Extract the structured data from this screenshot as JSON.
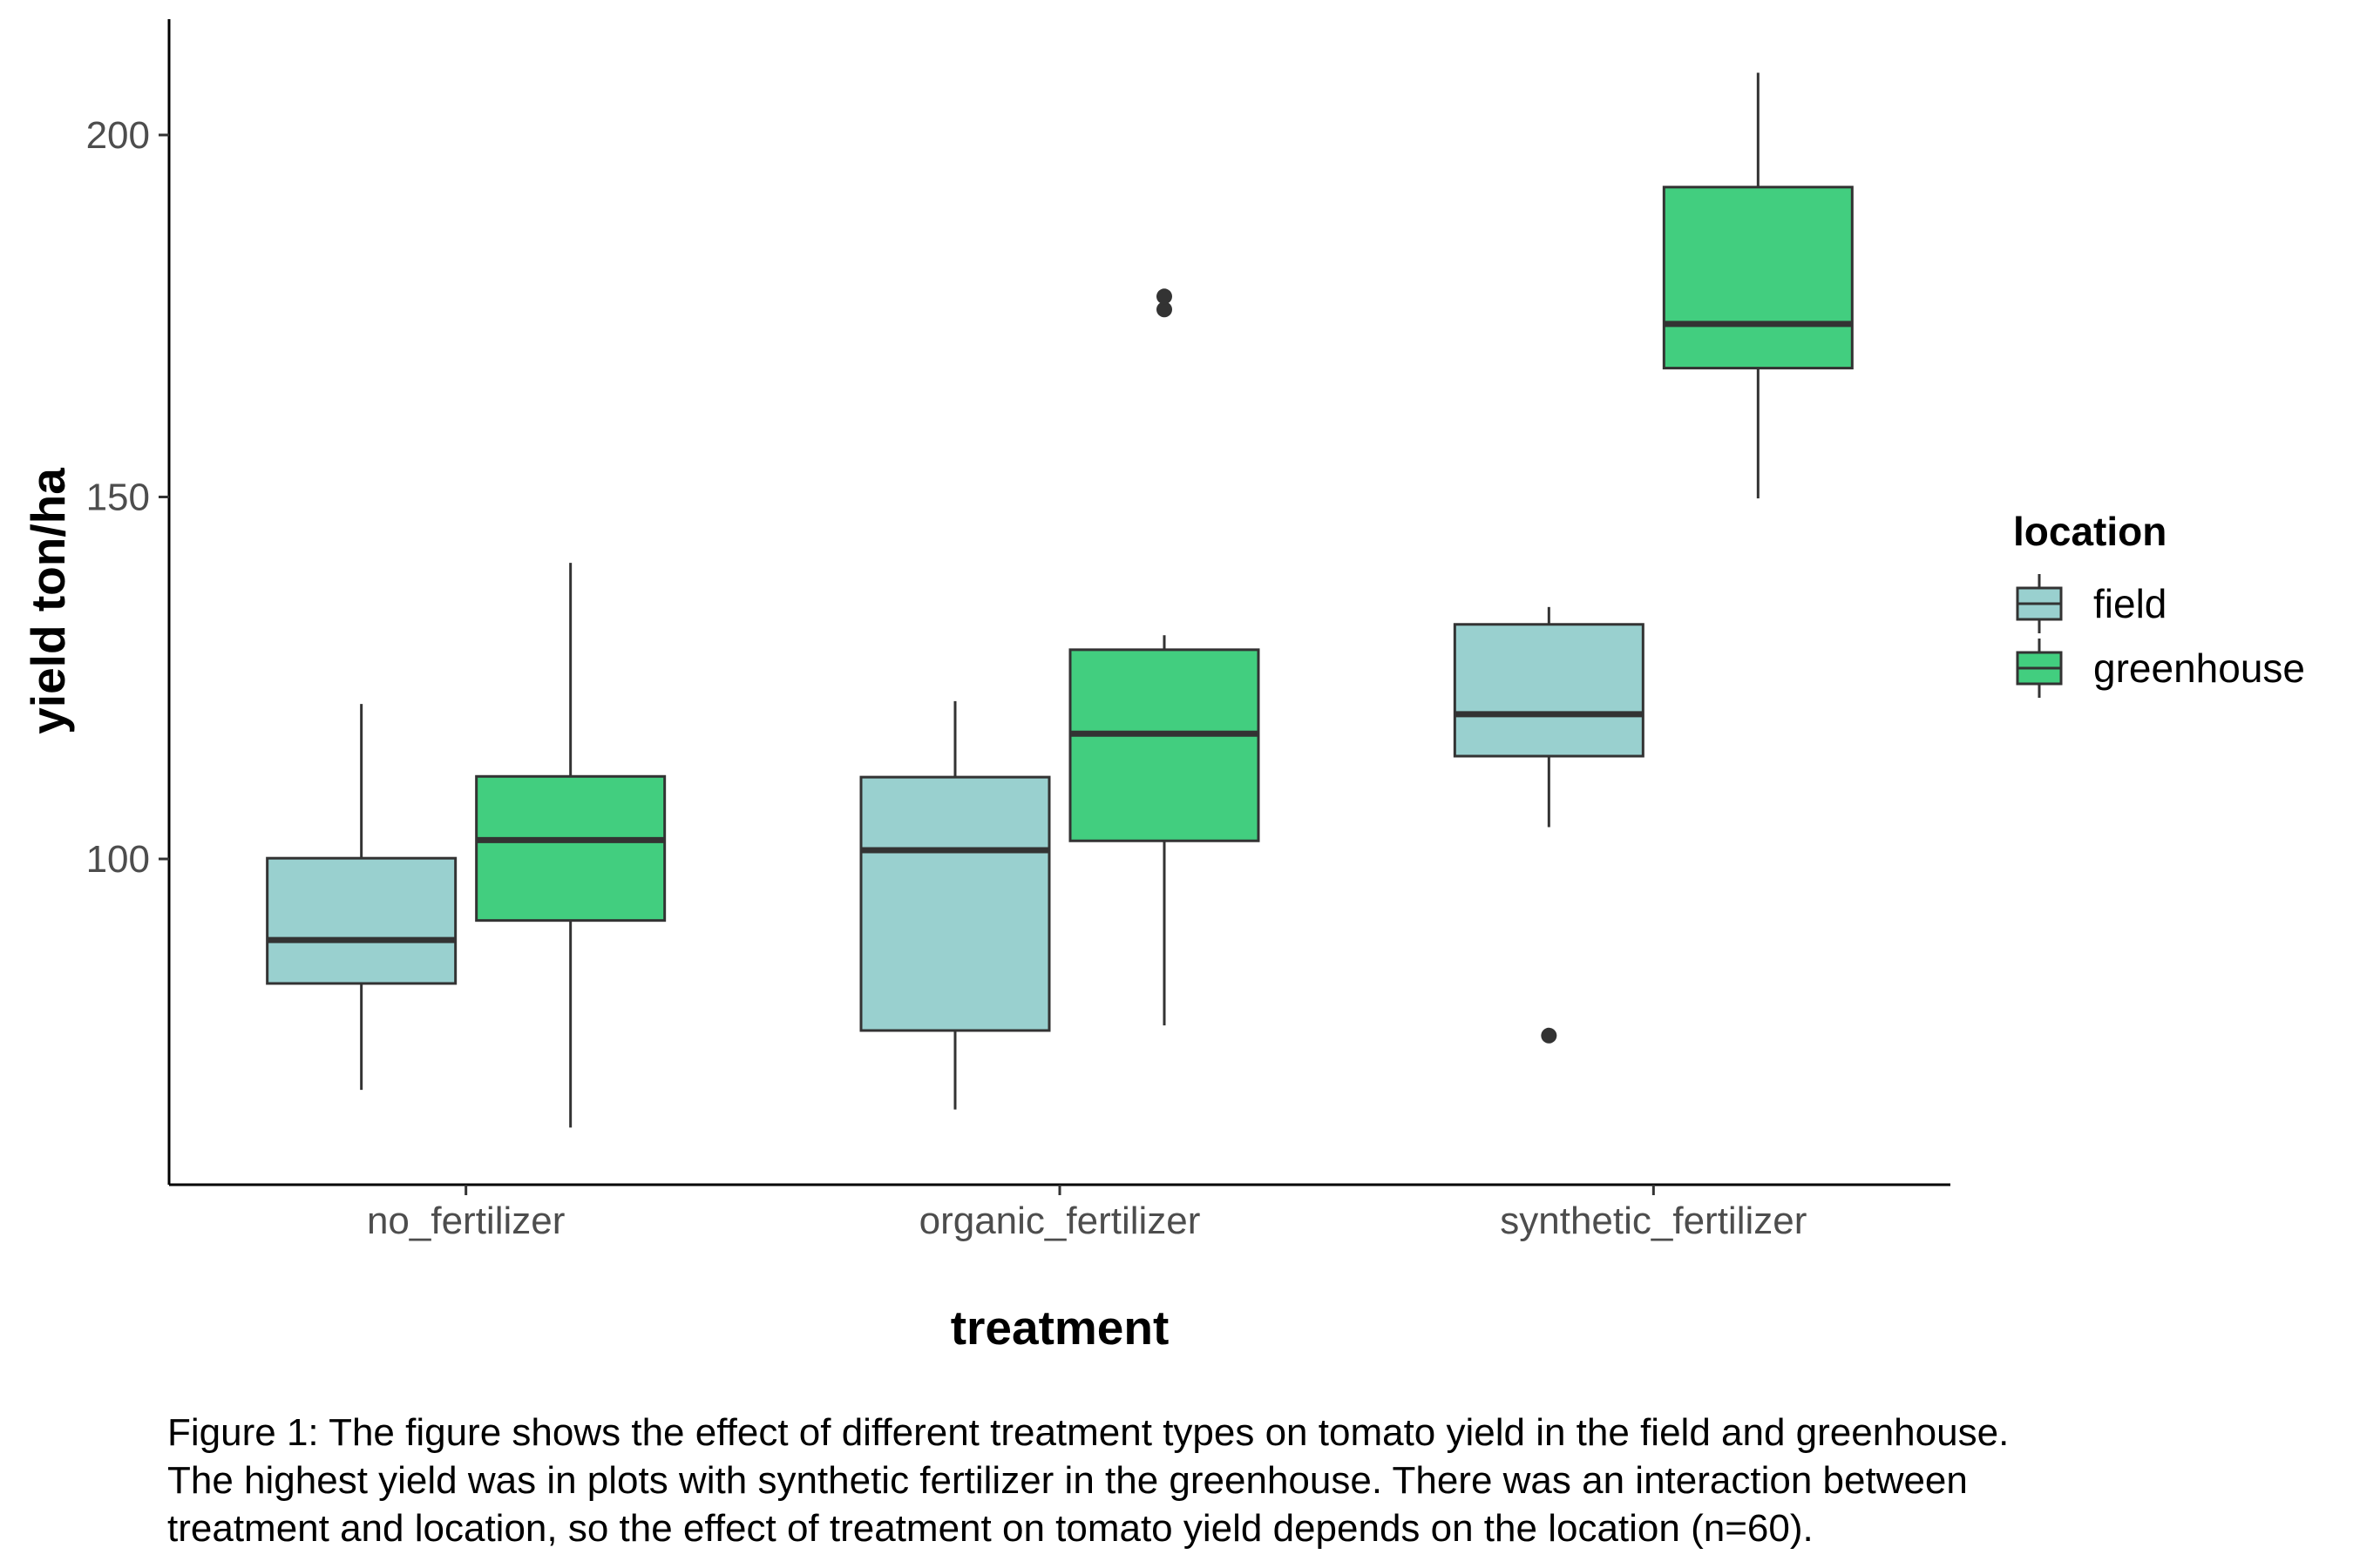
{
  "chart_data": {
    "type": "boxplot",
    "xlabel": "treatment",
    "ylabel": "yield ton/ha",
    "categories": [
      "no_fertilizer",
      "organic_fertilizer",
      "synthetic_fertilizer"
    ],
    "y_ticks": [
      100,
      150,
      200
    ],
    "ylim": [
      55,
      216
    ],
    "grid": false,
    "legend": {
      "title": "location",
      "position": "right"
    },
    "series": [
      {
        "name": "field",
        "color": "#99d0cf",
        "boxes": [
          {
            "whisker_low": 68.1,
            "q1": 82.8,
            "median": 88.8,
            "q3": 100.1,
            "whisker_high": 121.4,
            "outliers": []
          },
          {
            "whisker_low": 65.4,
            "q1": 76.3,
            "median": 101.2,
            "q3": 111.3,
            "whisker_high": 121.8,
            "outliers": []
          },
          {
            "whisker_low": 104.4,
            "q1": 114.2,
            "median": 120.0,
            "q3": 132.4,
            "whisker_high": 134.8,
            "outliers": [
              75.6
            ]
          }
        ]
      },
      {
        "name": "greenhouse",
        "color": "#42ce7f",
        "boxes": [
          {
            "whisker_low": 62.9,
            "q1": 91.5,
            "median": 102.6,
            "q3": 111.4,
            "whisker_high": 140.9,
            "outliers": []
          },
          {
            "whisker_low": 77.0,
            "q1": 102.5,
            "median": 117.3,
            "q3": 128.9,
            "whisker_high": 130.9,
            "outliers": [
              175.9,
              177.7
            ]
          },
          {
            "whisker_low": 149.8,
            "q1": 167.8,
            "median": 173.9,
            "q3": 192.8,
            "whisker_high": 208.6,
            "outliers": []
          }
        ]
      }
    ]
  },
  "caption": [
    "Figure 1: The figure shows the effect of different treatment types on tomato yield in the field and greenhouse.",
    "The highest yield was in plots with synthetic fertilizer in the greenhouse. There was an interaction between",
    "treatment and location, so the effect of treatment on tomato yield depends on the location (n=60)."
  ]
}
